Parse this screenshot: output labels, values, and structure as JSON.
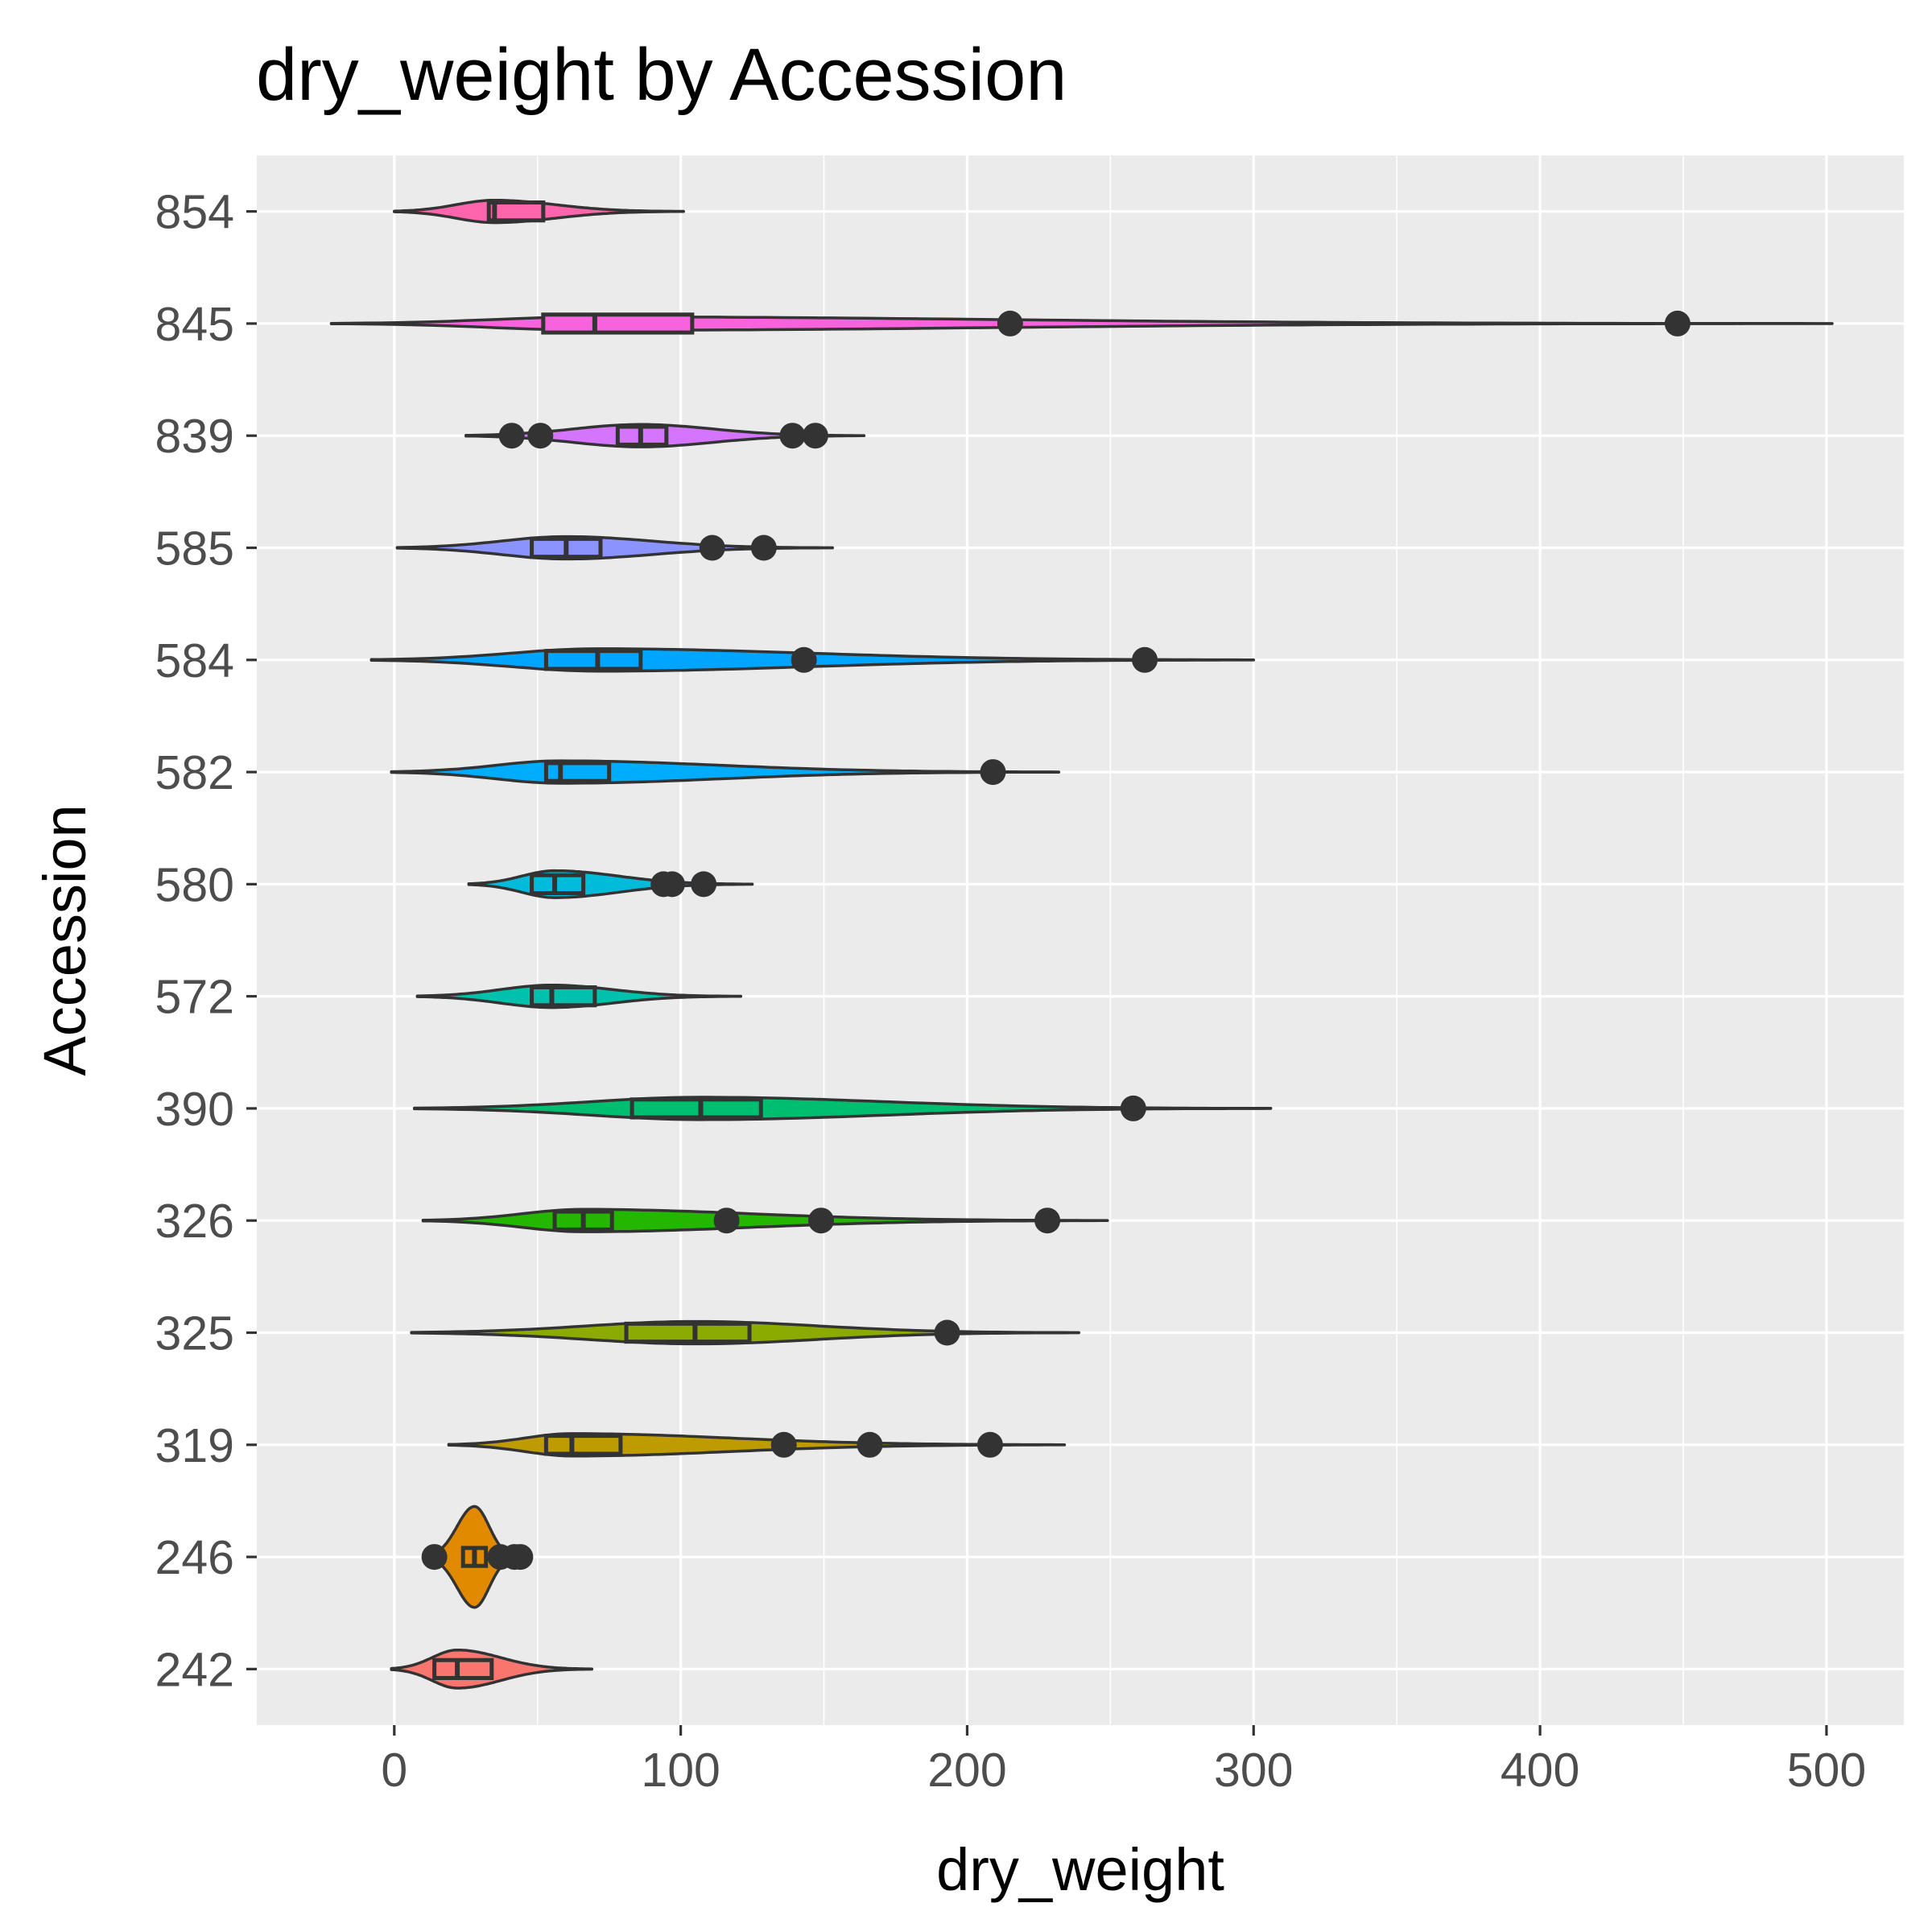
{
  "chart_data": {
    "type": "violin",
    "title": "dry_weight by Accession",
    "xlabel": "dry_weight",
    "ylabel": "Accession",
    "xlim": [
      -48,
      527
    ],
    "x_ticks": [
      0,
      100,
      200,
      300,
      400,
      500
    ],
    "x_minor_ticks": [
      50,
      150,
      250,
      350,
      450
    ],
    "grid": true,
    "legend": "none",
    "categories": [
      "242",
      "246",
      "319",
      "325",
      "326",
      "390",
      "572",
      "580",
      "582",
      "584",
      "585",
      "839",
      "845",
      "854"
    ],
    "series": [
      {
        "category": "242",
        "color": "#F8766D",
        "violin_range": [
          -1,
          69
        ],
        "violin_peak": 22,
        "violin_halfwidth": 0.17,
        "box": {
          "q1": 14,
          "median": 22,
          "q3": 34
        },
        "outliers": []
      },
      {
        "category": "246",
        "color": "#E18A00",
        "violin_range": [
          12,
          44
        ],
        "violin_peak": 28,
        "violin_halfwidth": 0.45,
        "box": {
          "q1": 24,
          "median": 28,
          "q3": 32
        },
        "outliers": [
          14,
          37,
          42,
          44
        ]
      },
      {
        "category": "319",
        "color": "#BE9C00",
        "violin_range": [
          19,
          234
        ],
        "violin_peak": 62,
        "violin_halfwidth": 0.1,
        "box": {
          "q1": 53,
          "median": 62,
          "q3": 79
        },
        "outliers": [
          136,
          166,
          208
        ]
      },
      {
        "category": "325",
        "color": "#8CAB00",
        "violin_range": [
          6,
          239
        ],
        "violin_peak": 105,
        "violin_halfwidth": 0.1,
        "box": {
          "q1": 81,
          "median": 105,
          "q3": 124
        },
        "outliers": [
          193
        ]
      },
      {
        "category": "326",
        "color": "#24B700",
        "violin_range": [
          10,
          249
        ],
        "violin_peak": 66,
        "violin_halfwidth": 0.1,
        "box": {
          "q1": 56,
          "median": 66,
          "q3": 76
        },
        "outliers": [
          116,
          149,
          228
        ]
      },
      {
        "category": "390",
        "color": "#00BE70",
        "violin_range": [
          7,
          306
        ],
        "violin_peak": 107,
        "violin_halfwidth": 0.1,
        "box": {
          "q1": 83,
          "median": 107,
          "q3": 128
        },
        "outliers": [
          258
        ]
      },
      {
        "category": "572",
        "color": "#00C1AB",
        "violin_range": [
          8,
          121
        ],
        "violin_peak": 55,
        "violin_halfwidth": 0.1,
        "box": {
          "q1": 48,
          "median": 55,
          "q3": 70
        },
        "outliers": []
      },
      {
        "category": "580",
        "color": "#00BBDA",
        "violin_range": [
          26,
          125
        ],
        "violin_peak": 56,
        "violin_halfwidth": 0.12,
        "box": {
          "q1": 48,
          "median": 56,
          "q3": 66
        },
        "outliers": [
          94,
          97,
          108
        ]
      },
      {
        "category": "582",
        "color": "#00ACFC",
        "violin_range": [
          -1,
          232
        ],
        "violin_peak": 58,
        "violin_halfwidth": 0.1,
        "box": {
          "q1": 53,
          "median": 58,
          "q3": 75
        },
        "outliers": [
          209
        ]
      },
      {
        "category": "584",
        "color": "#00A5FF",
        "violin_range": [
          -8,
          300
        ],
        "violin_peak": 71,
        "violin_halfwidth": 0.1,
        "box": {
          "q1": 53,
          "median": 71,
          "q3": 86
        },
        "outliers": [
          143,
          262
        ]
      },
      {
        "category": "585",
        "color": "#8B93FF",
        "violin_range": [
          1,
          153
        ],
        "violin_peak": 60,
        "violin_halfwidth": 0.1,
        "box": {
          "q1": 48,
          "median": 60,
          "q3": 72
        },
        "outliers": [
          111,
          129
        ]
      },
      {
        "category": "839",
        "color": "#D575FE",
        "violin_range": [
          25,
          164
        ],
        "violin_peak": 86,
        "violin_halfwidth": 0.1,
        "box": {
          "q1": 78,
          "median": 86,
          "q3": 95
        },
        "outliers": [
          41,
          51,
          139,
          147
        ]
      },
      {
        "category": "845",
        "color": "#F962DD",
        "violin_range": [
          -22,
          502
        ],
        "violin_peak": 70,
        "violin_halfwidth": 0.06,
        "box": {
          "q1": 52,
          "median": 70,
          "q3": 104
        },
        "outliers": [
          215,
          448
        ]
      },
      {
        "category": "854",
        "color": "#FF65AC",
        "violin_range": [
          0,
          101
        ],
        "violin_peak": 35,
        "violin_halfwidth": 0.1,
        "box": {
          "q1": 33,
          "median": 35,
          "q3": 52
        },
        "outliers": []
      }
    ]
  }
}
